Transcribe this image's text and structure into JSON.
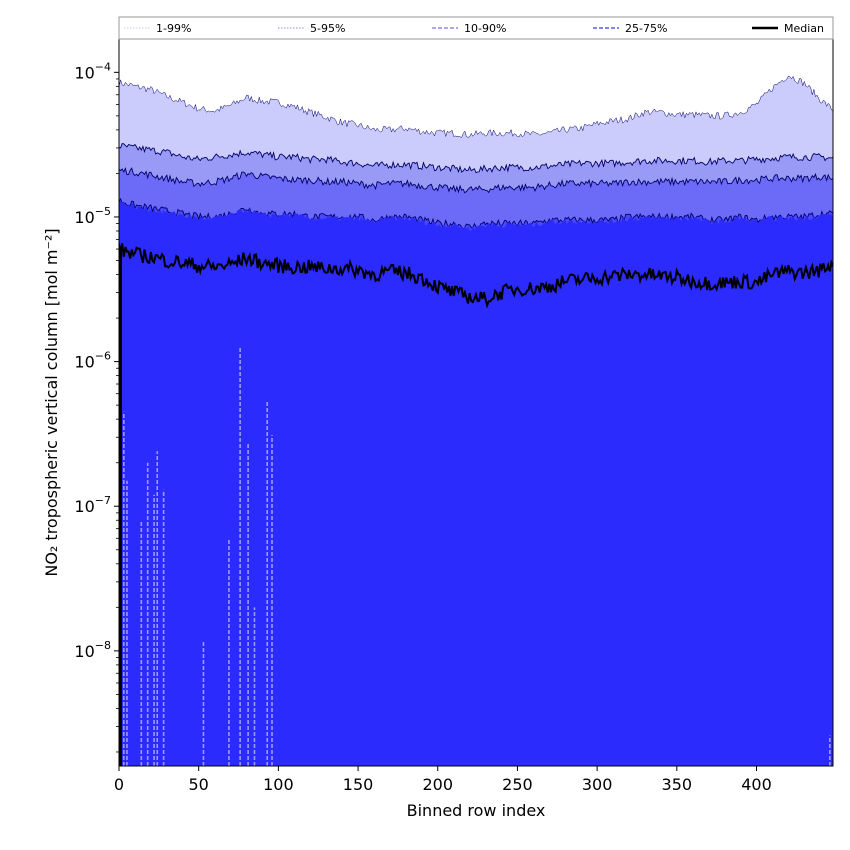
{
  "chart_data": {
    "type": "area",
    "xlabel": "Binned row index",
    "ylabel": "NO₂ tropospheric vertical column [mol m⁻²]",
    "y_scale": "log",
    "xlim": [
      0,
      448
    ],
    "ylim": [
      1.6e-09,
      0.00017
    ],
    "x_ticks": [
      0,
      50,
      100,
      150,
      200,
      250,
      300,
      350,
      400
    ],
    "y_ticks": [
      {
        "value": 1e-08,
        "base": "10",
        "exp": "−8"
      },
      {
        "value": 1e-07,
        "base": "10",
        "exp": "−7"
      },
      {
        "value": 1e-06,
        "base": "10",
        "exp": "−6"
      },
      {
        "value": 1e-05,
        "base": "10",
        "exp": "−5"
      },
      {
        "value": 0.0001,
        "base": "10",
        "exp": "−4"
      }
    ],
    "grid": false,
    "legend_position": "top, spanning full width",
    "legend": [
      {
        "label": "1-99%",
        "color": "#ddddf6",
        "style": "dotted"
      },
      {
        "label": "5-95%",
        "color": "#b3b3ee",
        "style": "dotted"
      },
      {
        "label": "10-90%",
        "color": "#8c8cf2",
        "style": "dashed"
      },
      {
        "label": "25-75%",
        "color": "#5a5ae8",
        "style": "dashed"
      },
      {
        "label": "Median",
        "color": "#000000",
        "style": "solid"
      }
    ],
    "x": [
      0,
      10,
      20,
      30,
      40,
      50,
      60,
      70,
      80,
      90,
      100,
      110,
      120,
      130,
      140,
      150,
      160,
      170,
      180,
      190,
      200,
      210,
      220,
      230,
      240,
      250,
      260,
      270,
      280,
      290,
      300,
      310,
      320,
      330,
      340,
      350,
      360,
      370,
      380,
      390,
      400,
      410,
      420,
      430,
      440,
      448
    ],
    "series": [
      {
        "name": "1-99%",
        "color": "#ccccfc",
        "upper": [
          8.5e-05,
          8e-05,
          7.6e-05,
          6.8e-05,
          6.2e-05,
          5.6e-05,
          5.4e-05,
          5.9e-05,
          6.7e-05,
          6.3e-05,
          6.2e-05,
          5.8e-05,
          5.3e-05,
          4.9e-05,
          4.5e-05,
          4.3e-05,
          4e-05,
          4e-05,
          4.1e-05,
          3.9e-05,
          3.8e-05,
          3.8e-05,
          3.7e-05,
          3.8e-05,
          3.8e-05,
          3.8e-05,
          3.7e-05,
          3.8e-05,
          4e-05,
          4.1e-05,
          4.4e-05,
          4.6e-05,
          4.8e-05,
          5.3e-05,
          5.3e-05,
          5.1e-05,
          5.1e-05,
          5e-05,
          5e-05,
          5.3e-05,
          6e-05,
          7.8e-05,
          9.6e-05,
          8.4e-05,
          6.5e-05,
          5.5e-05
        ],
        "lower_spikes": [
          [
            3,
            4.5e-07
          ],
          [
            5,
            1.5e-07
          ],
          [
            14,
            8e-08
          ],
          [
            18,
            2e-07
          ],
          [
            22,
            1.2e-07
          ],
          [
            24,
            2.4e-07
          ],
          [
            28,
            1.3e-07
          ],
          [
            53,
            1.15e-08
          ],
          [
            69,
            6e-08
          ],
          [
            76,
            1.25e-06
          ],
          [
            81,
            2.7e-07
          ],
          [
            85,
            2e-08
          ],
          [
            93,
            5.3e-07
          ],
          [
            96,
            3.1e-07
          ],
          [
            446,
            2.6e-09
          ]
        ]
      },
      {
        "name": "5-95%",
        "color": "#9999f6",
        "upper": [
          3.1e-05,
          3e-05,
          2.9e-05,
          2.8e-05,
          2.6e-05,
          2.5e-05,
          2.6e-05,
          2.7e-05,
          2.8e-05,
          2.7e-05,
          2.6e-05,
          2.6e-05,
          2.5e-05,
          2.5e-05,
          2.4e-05,
          2.35e-05,
          2.25e-05,
          2.3e-05,
          2.3e-05,
          2.25e-05,
          2.2e-05,
          2.15e-05,
          2.1e-05,
          2.15e-05,
          2.2e-05,
          2.2e-05,
          2.2e-05,
          2.25e-05,
          2.3e-05,
          2.35e-05,
          2.35e-05,
          2.35e-05,
          2.4e-05,
          2.45e-05,
          2.45e-05,
          2.45e-05,
          2.45e-05,
          2.4e-05,
          2.45e-05,
          2.45e-05,
          2.5e-05,
          2.55e-05,
          2.6e-05,
          2.6e-05,
          2.6e-05,
          2.55e-05
        ]
      },
      {
        "name": "10-90%",
        "color": "#6b6bf8",
        "upper": [
          2.1e-05,
          2.05e-05,
          1.95e-05,
          1.85e-05,
          1.75e-05,
          1.7e-05,
          1.75e-05,
          1.85e-05,
          2e-05,
          1.9e-05,
          1.85e-05,
          1.8e-05,
          1.8e-05,
          1.75e-05,
          1.75e-05,
          1.7e-05,
          1.65e-05,
          1.7e-05,
          1.7e-05,
          1.65e-05,
          1.6e-05,
          1.55e-05,
          1.55e-05,
          1.55e-05,
          1.6e-05,
          1.6e-05,
          1.6e-05,
          1.65e-05,
          1.7e-05,
          1.7e-05,
          1.7e-05,
          1.7e-05,
          1.75e-05,
          1.75e-05,
          1.75e-05,
          1.75e-05,
          1.75e-05,
          1.75e-05,
          1.75e-05,
          1.8e-05,
          1.8e-05,
          1.85e-05,
          1.85e-05,
          1.85e-05,
          1.9e-05,
          1.85e-05
        ]
      },
      {
        "name": "25-75%",
        "color": "#4848fc",
        "upper": [
          1.3e-05,
          1.2e-05,
          1.15e-05,
          1.1e-05,
          1.05e-05,
          1e-05,
          1e-05,
          1.05e-05,
          1.15e-05,
          1.05e-05,
          1.05e-05,
          1.05e-05,
          1e-05,
          1e-05,
          1e-05,
          1e-05,
          9.5e-06,
          1e-05,
          1e-05,
          9.5e-06,
          9e-06,
          9e-06,
          8.5e-06,
          9e-06,
          9e-06,
          9e-06,
          9e-06,
          9.5e-06,
          9.5e-06,
          9.5e-06,
          9.5e-06,
          9.5e-06,
          1e-05,
          1e-05,
          1e-05,
          1e-05,
          1e-05,
          9.5e-06,
          9.5e-06,
          1e-05,
          9.5e-06,
          1e-05,
          1e-05,
          1e-05,
          1.05e-05,
          1.05e-05
        ]
      },
      {
        "name": "Median",
        "color": "#000000",
        "values": [
          6e-06,
          5.5e-06,
          5.3e-06,
          5e-06,
          4.8e-06,
          4.6e-06,
          4.5e-06,
          4.7e-06,
          5.2e-06,
          4.8e-06,
          4.6e-06,
          4.5e-06,
          4.5e-06,
          4.4e-06,
          4.4e-06,
          4.3e-06,
          4e-06,
          4.2e-06,
          4.1e-06,
          3.8e-06,
          3.3e-06,
          3e-06,
          2.8e-06,
          2.7e-06,
          3e-06,
          3.2e-06,
          3.2e-06,
          3.3e-06,
          3.6e-06,
          3.7e-06,
          3.8e-06,
          3.9e-06,
          4e-06,
          4e-06,
          3.9e-06,
          3.8e-06,
          3.6e-06,
          3.5e-06,
          3.5e-06,
          3.6e-06,
          3.5e-06,
          4e-06,
          4.2e-06,
          4.1e-06,
          4.3e-06,
          4.8e-06
        ]
      }
    ],
    "base_fill_color": "#2b2bfe"
  }
}
